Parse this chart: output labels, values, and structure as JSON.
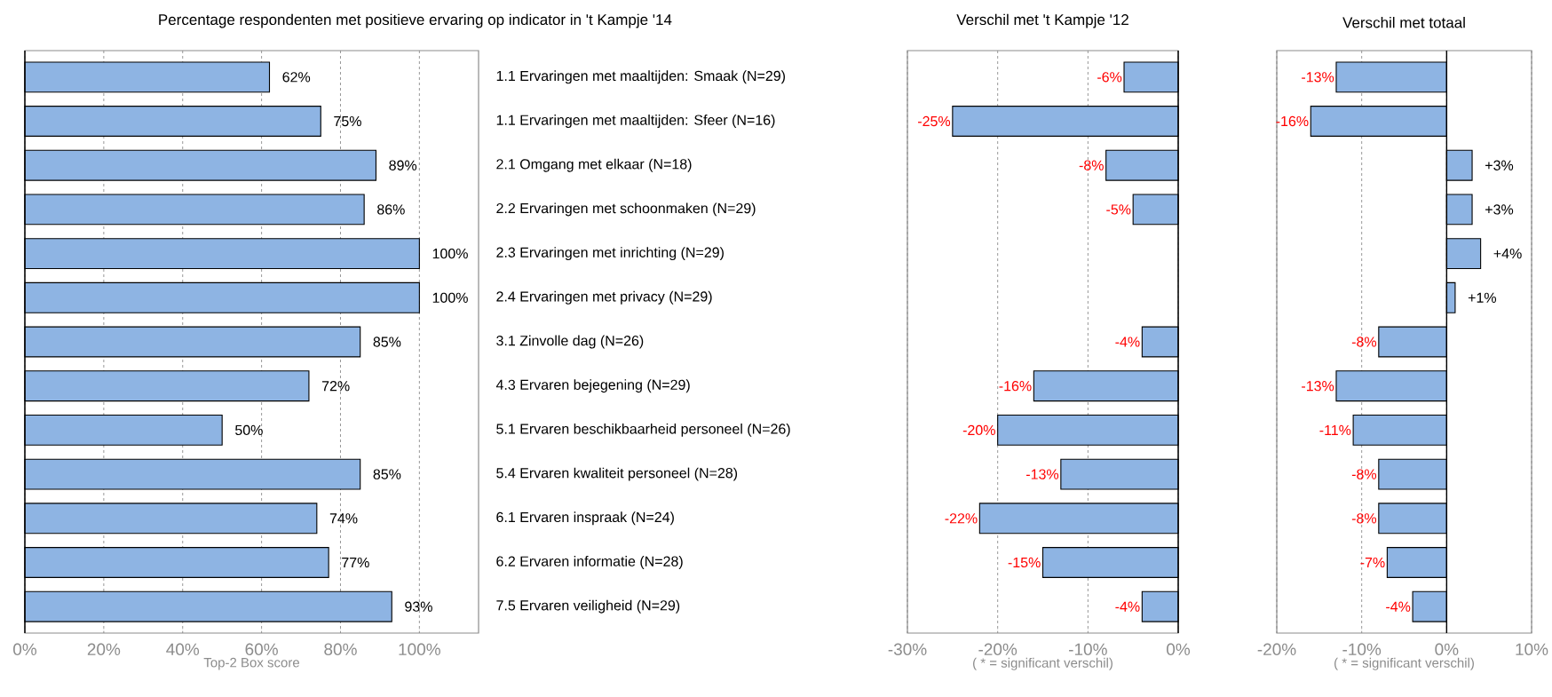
{
  "chart_data": [
    {
      "type": "bar",
      "orientation": "horizontal",
      "title": "Percentage respondenten met positieve ervaring op indicator in 't Kampje '14",
      "xlabel": "Top-2 Box score",
      "categories": [
        "1.1 Ervaringen met maaltijden: Smaak (N=29)",
        "1.1 Ervaringen met maaltijden: Sfeer (N=16)",
        "2.1 Omgang met elkaar (N=18)",
        "2.2 Ervaringen met schoonmaken (N=29)",
        "2.3 Ervaringen met inrichting (N=29)",
        "2.4 Ervaringen met privacy (N=29)",
        "3.1 Zinvolle dag (N=26)",
        "4.3 Ervaren bejegening (N=29)",
        "5.1 Ervaren beschikbaarheid personeel (N=26)",
        "5.4 Ervaren kwaliteit personeel (N=28)",
        "6.1 Ervaren inspraak (N=24)",
        "6.2 Ervaren informatie (N=28)",
        "7.5 Ervaren veiligheid (N=29)"
      ],
      "values": [
        62,
        75,
        89,
        86,
        100,
        100,
        85,
        72,
        50,
        85,
        74,
        77,
        93
      ],
      "value_labels": [
        "62%",
        "75%",
        "89%",
        "86%",
        "100%",
        "100%",
        "85%",
        "72%",
        "50%",
        "85%",
        "74%",
        "77%",
        "93%"
      ],
      "color": "#8eb4e3",
      "xlim": [
        0,
        115
      ],
      "xticks": [
        {
          "value": 0,
          "label": "0%"
        },
        {
          "value": 20,
          "label": "20%"
        },
        {
          "value": 40,
          "label": "40%"
        },
        {
          "value": 60,
          "label": "60%"
        },
        {
          "value": 80,
          "label": "80%"
        },
        {
          "value": 100,
          "label": "100%"
        }
      ],
      "grid": "x"
    },
    {
      "type": "bar",
      "orientation": "horizontal",
      "title": "Verschil met 't Kampje '12",
      "xlabel": "( * = significant verschil)",
      "values": [
        -6,
        -25,
        -8,
        -5,
        null,
        null,
        -4,
        -16,
        -20,
        -13,
        -22,
        -15,
        -4
      ],
      "value_labels": [
        "-6%",
        "-25%",
        "-8%",
        "-5%",
        null,
        null,
        "-4%",
        "-16%",
        "-20%",
        "-13%",
        "-22%",
        "-15%",
        "-4%"
      ],
      "color": "#8eb4e3",
      "xlim": [
        -30,
        0
      ],
      "xticks": [
        {
          "value": -30,
          "label": "-30%"
        },
        {
          "value": -20,
          "label": "-20%"
        },
        {
          "value": -10,
          "label": "-10%"
        },
        {
          "value": 0,
          "label": "0%"
        }
      ],
      "grid": "x",
      "tick_labels": "x"
    },
    {
      "type": "bar",
      "orientation": "horizontal",
      "title": "Verschil met totaal",
      "xlabel": "( * = significant verschil)",
      "values": [
        -13,
        -16,
        3,
        3,
        4,
        1,
        -8,
        -13,
        -11,
        -8,
        -8,
        -7,
        -4
      ],
      "value_labels": [
        "-13%",
        "-16%",
        "+3%",
        "+3%",
        "+4%",
        "+1%",
        "-8%",
        "-13%",
        "-11%",
        "-8%",
        "-8%",
        "-7%",
        "-4%"
      ],
      "color": "#8eb4e3",
      "xlim": [
        -20,
        10
      ],
      "xticks": [
        {
          "value": -20,
          "label": "-20%"
        },
        {
          "value": -10,
          "label": "-10%"
        },
        {
          "value": 0,
          "label": "0%"
        },
        {
          "value": 10,
          "label": "10%"
        }
      ],
      "grid": "x",
      "tick_labels": "x"
    }
  ]
}
